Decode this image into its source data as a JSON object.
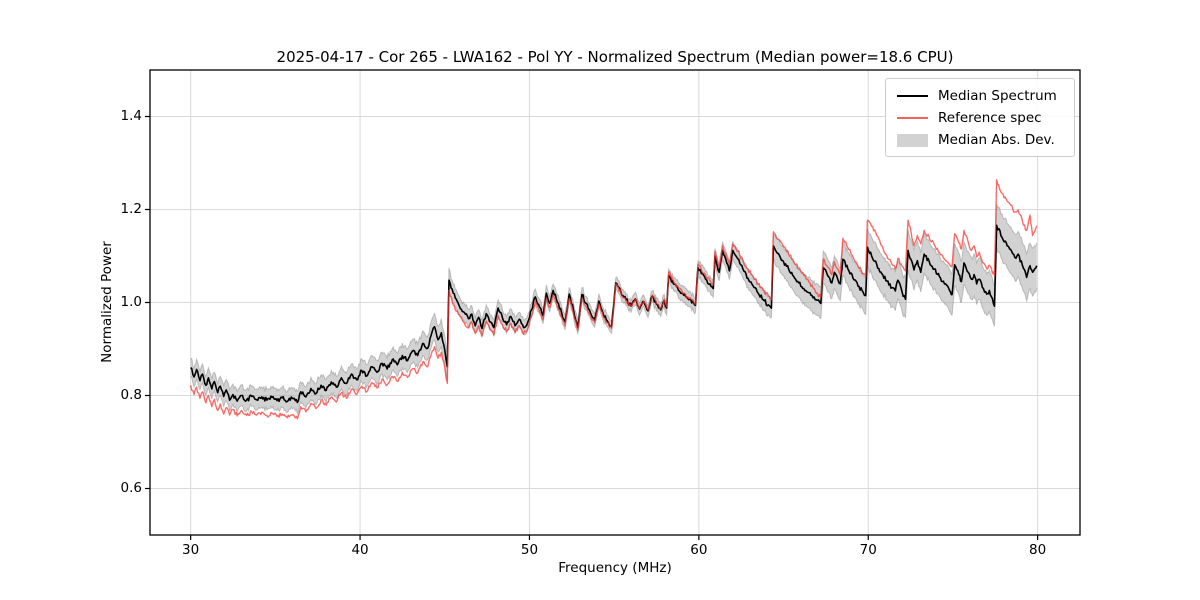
{
  "chart_data": {
    "type": "line",
    "title": "2025-04-17 - Cor 265 - LWA162 - Pol YY - Normalized Spectrum (Median power=18.6 CPU)",
    "xlabel": "Frequency (MHz)",
    "ylabel": "Normalized Power",
    "xlim": [
      27.6,
      82.5
    ],
    "ylim": [
      0.5,
      1.5
    ],
    "xticks": [
      30,
      40,
      50,
      60,
      70,
      80
    ],
    "xtick_labels": [
      "30",
      "40",
      "50",
      "60",
      "70",
      "80"
    ],
    "yticks": [
      0.6,
      0.8,
      1.0,
      1.2,
      1.4
    ],
    "ytick_labels": [
      "0.6",
      "0.8",
      "1.0",
      "1.2",
      "1.4"
    ],
    "grid": true,
    "grid_color": "#d9d9d9",
    "axis_color": "#000000",
    "legend_position": "upper right",
    "x": [
      30.0,
      30.2,
      30.35,
      30.55,
      30.7,
      30.9,
      31.05,
      31.25,
      31.4,
      31.6,
      31.75,
      31.95,
      32.1,
      32.3,
      32.5,
      32.75,
      33.0,
      33.3,
      33.6,
      33.9,
      34.2,
      34.5,
      34.8,
      35.1,
      35.4,
      35.7,
      36.0,
      36.3,
      36.5,
      36.8,
      37.1,
      37.4,
      37.7,
      38.0,
      38.3,
      38.6,
      38.9,
      39.2,
      39.5,
      39.8,
      40.1,
      40.4,
      40.7,
      41.0,
      41.3,
      41.6,
      41.9,
      42.2,
      42.5,
      42.8,
      43.1,
      43.4,
      43.7,
      44.0,
      44.2,
      44.4,
      44.6,
      44.8,
      45.0,
      45.15,
      45.25,
      45.5,
      45.8,
      46.1,
      46.4,
      46.6,
      46.8,
      47.0,
      47.2,
      47.45,
      47.7,
      47.9,
      48.15,
      48.4,
      48.65,
      48.9,
      49.15,
      49.4,
      49.65,
      49.9,
      50.35,
      50.6,
      50.8,
      51.0,
      51.2,
      51.4,
      51.65,
      51.9,
      52.1,
      52.35,
      52.6,
      52.85,
      53.1,
      53.35,
      53.6,
      53.85,
      54.1,
      54.35,
      54.6,
      54.85,
      55.1,
      55.4,
      55.7,
      56.0,
      56.25,
      56.5,
      56.75,
      57.0,
      57.25,
      57.5,
      57.75,
      57.95,
      58.1,
      58.22,
      58.5,
      58.8,
      59.1,
      59.4,
      59.7,
      59.8,
      59.95,
      60.15,
      60.4,
      60.65,
      60.85,
      60.95,
      61.2,
      61.4,
      61.65,
      61.8,
      62.0,
      62.3,
      62.6,
      62.9,
      63.2,
      63.5,
      63.8,
      64.1,
      64.28,
      64.4,
      64.7,
      65.0,
      65.3,
      65.6,
      65.9,
      66.2,
      66.5,
      66.8,
      67.0,
      67.2,
      67.35,
      67.6,
      67.85,
      68.0,
      68.2,
      68.35,
      68.5,
      68.8,
      69.1,
      69.4,
      69.7,
      69.85,
      69.95,
      70.2,
      70.5,
      70.8,
      71.1,
      71.4,
      71.6,
      71.75,
      72.0,
      72.2,
      72.35,
      72.7,
      72.9,
      73.1,
      73.3,
      73.6,
      73.9,
      74.2,
      74.5,
      74.8,
      74.95,
      75.1,
      75.35,
      75.5,
      75.65,
      75.9,
      76.1,
      76.25,
      76.4,
      76.55,
      76.8,
      77.0,
      77.15,
      77.45,
      77.58,
      77.9,
      78.2,
      78.35,
      78.65,
      78.85,
      79.1,
      79.35,
      79.55,
      79.7,
      79.82,
      79.95
    ],
    "series": [
      {
        "name": "Median Spectrum",
        "color": "#000000",
        "line_width": 1.6,
        "values": [
          0.86,
          0.84,
          0.856,
          0.832,
          0.846,
          0.822,
          0.838,
          0.814,
          0.83,
          0.806,
          0.82,
          0.798,
          0.812,
          0.79,
          0.802,
          0.788,
          0.8,
          0.79,
          0.798,
          0.791,
          0.797,
          0.79,
          0.796,
          0.789,
          0.795,
          0.787,
          0.794,
          0.785,
          0.808,
          0.797,
          0.815,
          0.804,
          0.822,
          0.811,
          0.829,
          0.818,
          0.838,
          0.826,
          0.846,
          0.834,
          0.854,
          0.842,
          0.862,
          0.85,
          0.869,
          0.857,
          0.877,
          0.866,
          0.886,
          0.875,
          0.896,
          0.886,
          0.912,
          0.902,
          0.93,
          0.948,
          0.92,
          0.935,
          0.898,
          0.862,
          1.048,
          1.02,
          0.998,
          0.98,
          0.965,
          0.975,
          0.95,
          0.968,
          0.944,
          0.976,
          0.958,
          0.946,
          0.988,
          0.968,
          0.952,
          0.97,
          0.95,
          0.964,
          0.946,
          0.958,
          1.012,
          0.99,
          0.972,
          1.02,
          0.998,
          1.026,
          1.0,
          0.978,
          0.958,
          1.018,
          0.984,
          0.946,
          1.017,
          0.998,
          0.978,
          0.962,
          1.003,
          0.976,
          0.96,
          0.948,
          1.042,
          1.022,
          1.006,
          0.992,
          1.008,
          0.986,
          1.002,
          0.982,
          1.014,
          0.996,
          0.984,
          1.004,
          0.988,
          1.058,
          1.04,
          1.026,
          1.016,
          1.006,
          0.998,
          0.994,
          1.075,
          1.062,
          1.05,
          1.04,
          1.03,
          1.1,
          1.065,
          1.112,
          1.085,
          1.068,
          1.112,
          1.094,
          1.072,
          1.052,
          1.036,
          1.02,
          1.006,
          0.995,
          0.988,
          1.122,
          1.105,
          1.088,
          1.072,
          1.056,
          1.042,
          1.03,
          1.021,
          1.012,
          1.005,
          0.998,
          1.075,
          1.058,
          1.042,
          1.065,
          1.05,
          1.04,
          1.093,
          1.072,
          1.052,
          1.035,
          1.022,
          1.015,
          1.119,
          1.1,
          1.082,
          1.062,
          1.046,
          1.032,
          1.025,
          1.048,
          1.022,
          1.007,
          1.112,
          1.07,
          1.09,
          1.065,
          1.104,
          1.088,
          1.072,
          1.056,
          1.04,
          1.026,
          1.017,
          1.081,
          1.06,
          1.045,
          1.085,
          1.065,
          1.05,
          1.06,
          1.04,
          1.05,
          1.03,
          1.018,
          1.026,
          0.992,
          1.166,
          1.14,
          1.122,
          1.115,
          1.097,
          1.104,
          1.08,
          1.054,
          1.079,
          1.065,
          1.072,
          1.079
        ]
      },
      {
        "name": "Reference spec",
        "color": "rgba(250,50,45,0.72)",
        "line_width": 1.4,
        "values": [
          0.822,
          0.802,
          0.818,
          0.794,
          0.808,
          0.784,
          0.8,
          0.776,
          0.792,
          0.768,
          0.782,
          0.76,
          0.774,
          0.758,
          0.77,
          0.756,
          0.768,
          0.757,
          0.765,
          0.758,
          0.764,
          0.757,
          0.762,
          0.755,
          0.76,
          0.752,
          0.758,
          0.75,
          0.776,
          0.765,
          0.783,
          0.772,
          0.79,
          0.779,
          0.797,
          0.786,
          0.806,
          0.794,
          0.814,
          0.802,
          0.82,
          0.808,
          0.828,
          0.816,
          0.835,
          0.823,
          0.841,
          0.83,
          0.85,
          0.839,
          0.858,
          0.848,
          0.872,
          0.862,
          0.888,
          0.905,
          0.88,
          0.893,
          0.86,
          0.826,
          1.026,
          0.995,
          0.975,
          0.958,
          0.945,
          0.958,
          0.934,
          0.95,
          0.928,
          0.96,
          0.942,
          0.93,
          0.972,
          0.952,
          0.938,
          0.955,
          0.936,
          0.95,
          0.932,
          0.944,
          1.002,
          0.98,
          0.963,
          1.01,
          0.989,
          1.016,
          0.991,
          0.969,
          0.95,
          1.009,
          0.976,
          0.94,
          1.009,
          0.991,
          0.972,
          0.956,
          0.997,
          0.971,
          0.956,
          0.944,
          1.04,
          1.02,
          1.005,
          0.992,
          1.008,
          0.987,
          1.003,
          0.984,
          1.016,
          0.998,
          0.986,
          1.007,
          0.991,
          1.066,
          1.046,
          1.031,
          1.02,
          1.009,
          1.0,
          0.996,
          1.082,
          1.07,
          1.058,
          1.048,
          1.038,
          1.11,
          1.075,
          1.122,
          1.096,
          1.08,
          1.126,
          1.11,
          1.09,
          1.072,
          1.056,
          1.04,
          1.026,
          1.014,
          1.006,
          1.152,
          1.136,
          1.12,
          1.104,
          1.088,
          1.072,
          1.058,
          1.044,
          1.03,
          1.02,
          1.01,
          1.093,
          1.076,
          1.06,
          1.088,
          1.072,
          1.06,
          1.138,
          1.118,
          1.098,
          1.078,
          1.062,
          1.056,
          1.177,
          1.164,
          1.144,
          1.122,
          1.1,
          1.082,
          1.072,
          1.095,
          1.078,
          1.068,
          1.177,
          1.122,
          1.144,
          1.126,
          1.155,
          1.14,
          1.124,
          1.108,
          1.094,
          1.082,
          1.079,
          1.148,
          1.128,
          1.115,
          1.155,
          1.13,
          1.112,
          1.122,
          1.098,
          1.108,
          1.085,
          1.072,
          1.08,
          1.057,
          1.264,
          1.235,
          1.218,
          1.213,
          1.195,
          1.199,
          1.175,
          1.155,
          1.188,
          1.144,
          1.152,
          1.165
        ]
      }
    ],
    "band": {
      "name": "Median Abs. Dev.",
      "around": "Median Spectrum",
      "fill_color": "rgba(165,165,165,0.5)",
      "edge_color": "rgba(145,145,145,0.55)",
      "x": [
        30,
        32,
        36,
        40,
        44,
        45.15,
        45.4,
        47,
        50,
        53,
        55,
        56,
        58,
        59,
        61,
        63,
        64.3,
        64.5,
        66,
        68,
        70,
        72,
        74,
        76,
        77.45,
        77.6,
        79,
        80
      ],
      "half_width": [
        0.02,
        0.022,
        0.022,
        0.024,
        0.026,
        0.03,
        0.02,
        0.018,
        0.016,
        0.015,
        0.013,
        0.012,
        0.013,
        0.016,
        0.018,
        0.02,
        0.022,
        0.03,
        0.032,
        0.035,
        0.04,
        0.042,
        0.043,
        0.045,
        0.045,
        0.048,
        0.05,
        0.05
      ]
    }
  },
  "legend": {
    "items": [
      {
        "label": "Median Spectrum",
        "swatch": "line",
        "color": "#000000"
      },
      {
        "label": "Reference spec",
        "swatch": "line",
        "color": "#f4605c"
      },
      {
        "label": "Median Abs. Dev.",
        "swatch": "patch",
        "color": "#d2d2d2"
      }
    ]
  }
}
